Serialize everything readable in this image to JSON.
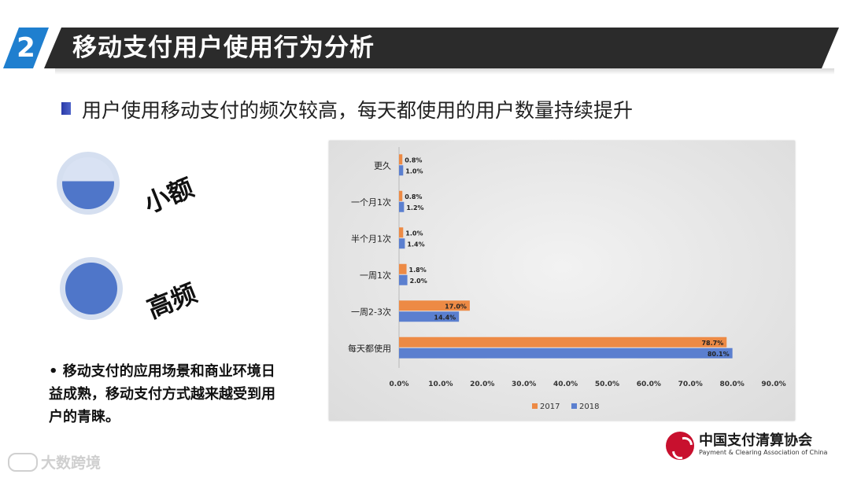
{
  "header": {
    "number": "2",
    "title": "移动支付用户使用行为分析"
  },
  "subtitle": "用户使用移动支付的频次较高，每天都使用的用户数量持续提升",
  "tags": {
    "small": "小额",
    "high": "高频"
  },
  "note": "• 移动支付的应用场景和商业环境日益成熟，移动支付方式越来越受到用户的青睐。",
  "logo": {
    "cn": "中国支付清算协会",
    "en": "Payment & Clearing Association of China"
  },
  "watermark": "大数跨境",
  "chart_data": {
    "type": "bar",
    "orientation": "horizontal",
    "categories": [
      "更久",
      "一个月1次",
      "半个月1次",
      "一周1次",
      "一周2-3次",
      "每天都使用"
    ],
    "series": [
      {
        "name": "2017",
        "color": "#ed8a45",
        "values": [
          0.8,
          0.8,
          1.0,
          1.8,
          17.0,
          78.7
        ],
        "labels": [
          "0.8%",
          "0.8%",
          "1.0%",
          "1.8%",
          "17.0%",
          "78.7%"
        ]
      },
      {
        "name": "2018",
        "color": "#5b7fcf",
        "values": [
          1.0,
          1.2,
          1.4,
          2.0,
          14.4,
          80.1
        ],
        "labels": [
          "1.0%",
          "1.2%",
          "1.4%",
          "2.0%",
          "14.4%",
          "80.1%"
        ]
      }
    ],
    "xlim": [
      0,
      90
    ],
    "xticks": [
      "0.0%",
      "10.0%",
      "20.0%",
      "30.0%",
      "40.0%",
      "50.0%",
      "60.0%",
      "70.0%",
      "80.0%",
      "90.0%"
    ],
    "legend": "bottom",
    "grid": false
  }
}
